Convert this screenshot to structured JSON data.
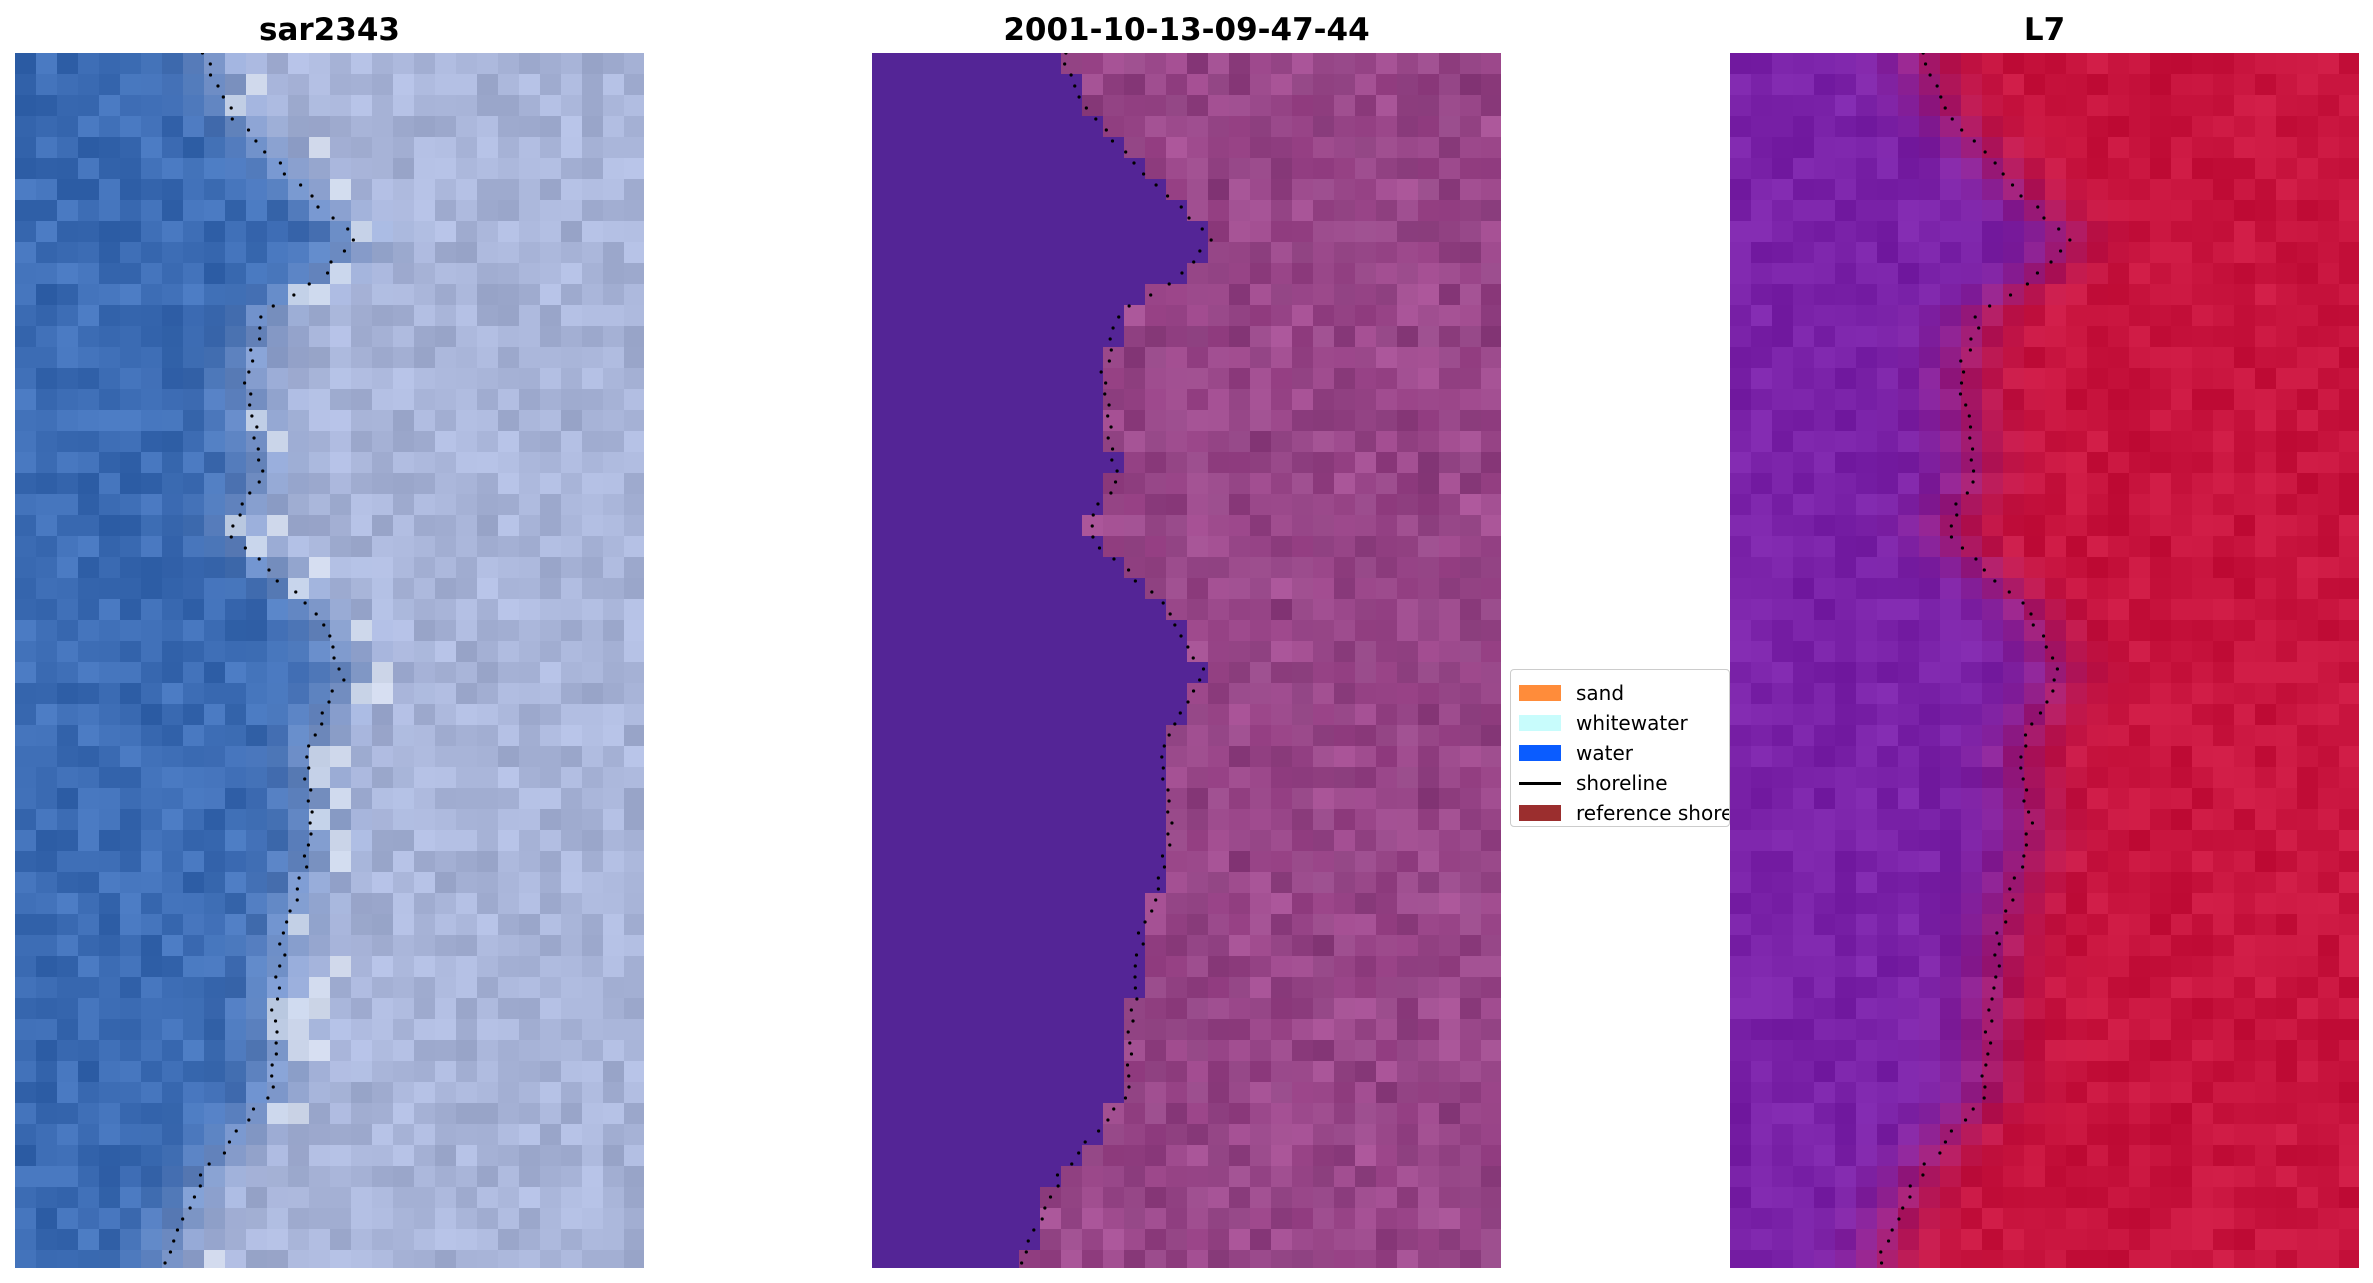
{
  "panels": [
    {
      "title": "sar2343",
      "style": "rgb"
    },
    {
      "title": "2001-10-13-09-47-44",
      "style": "classified"
    },
    {
      "title": "L7",
      "style": "index"
    }
  ],
  "legend": {
    "items": [
      {
        "label": "sand",
        "color": "#ff8c3a",
        "kind": "patch"
      },
      {
        "label": "whitewater",
        "color": "#c8fcfc",
        "kind": "patch"
      },
      {
        "label": "water",
        "color": "#0a5cff",
        "kind": "patch"
      },
      {
        "label": "shoreline",
        "color": "#000000",
        "kind": "line"
      },
      {
        "label": "reference shoreline",
        "color": "#9b2e2e",
        "kind": "patch"
      }
    ]
  },
  "colors": {
    "water_rgb": "#3c6cb4",
    "land_rgb": "#a8b4d8",
    "water_class": "#542596",
    "land_class": "#a04a8e",
    "water_index": "#7a22a8",
    "land_index": "#c8143e",
    "shoreline_dots": "#000000"
  }
}
